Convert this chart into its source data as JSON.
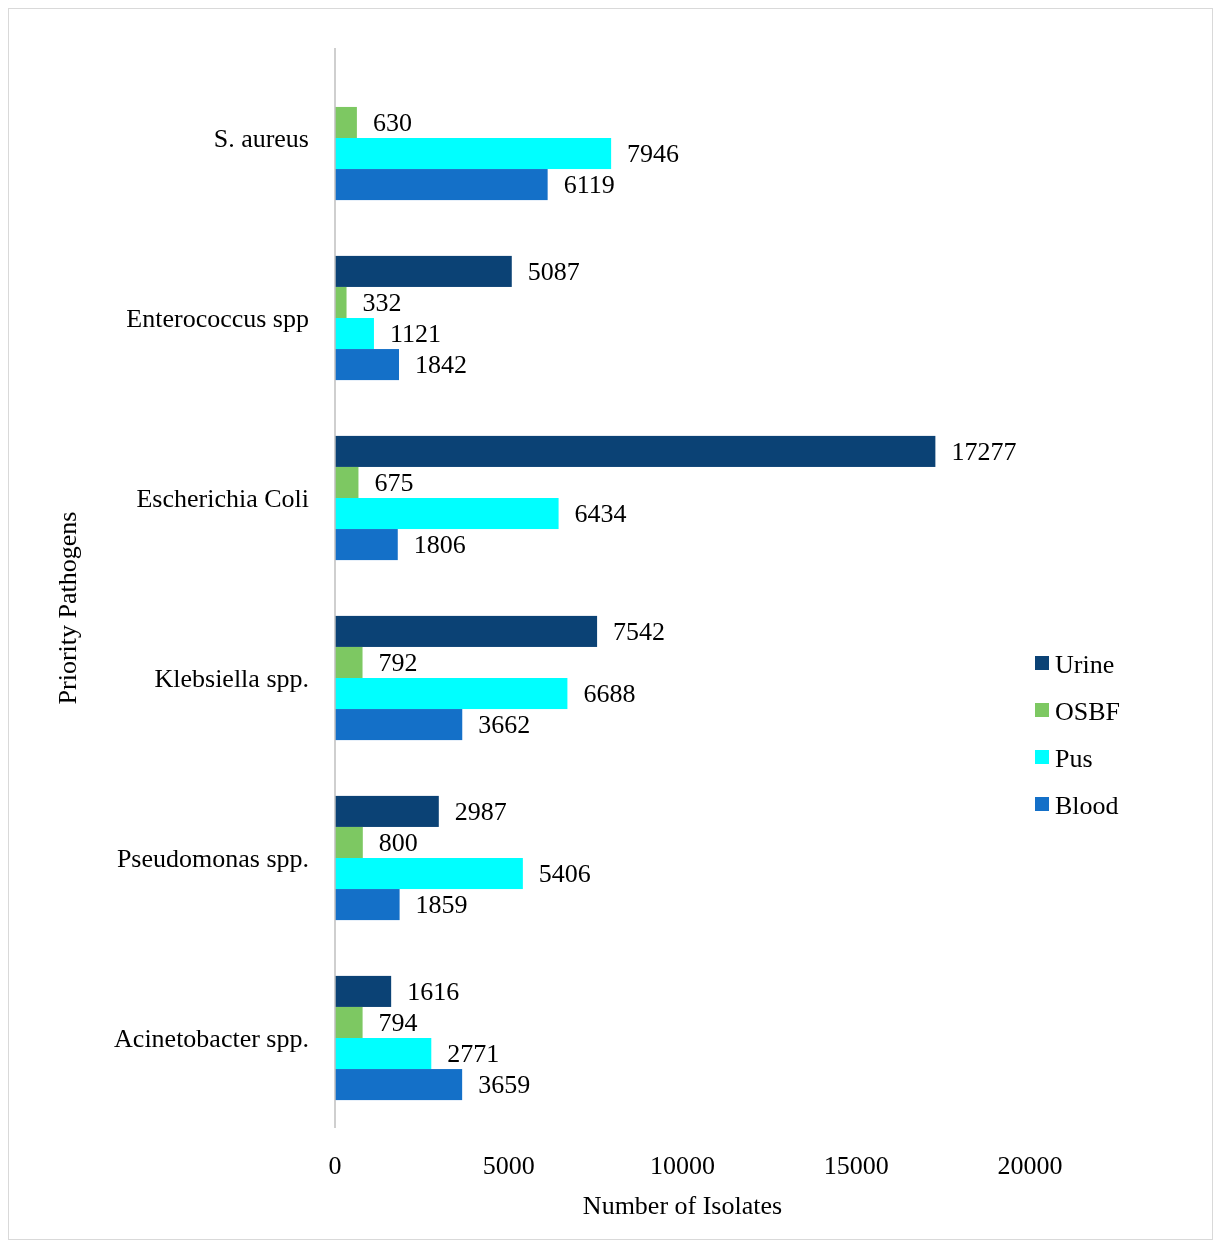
{
  "chart_data": {
    "type": "bar",
    "orientation": "horizontal",
    "xlabel": "Number of Isolates",
    "ylabel": "Priority Pathogens",
    "categories": [
      "S. aureus",
      "Enterococcus spp",
      "Escherichia Coli",
      "Klebsiella spp.",
      "Pseudomonas spp.",
      "Acinetobacter spp."
    ],
    "series": [
      {
        "name": "Urine",
        "color": "#0b4275",
        "values": [
          null,
          5087,
          17277,
          7542,
          2987,
          1616
        ]
      },
      {
        "name": "OSBF",
        "color": "#7dc862",
        "values": [
          630,
          332,
          675,
          792,
          800,
          794
        ]
      },
      {
        "name": "Pus",
        "color": "#00ffff",
        "values": [
          7946,
          1121,
          6434,
          6688,
          5406,
          2771
        ]
      },
      {
        "name": "Blood",
        "color": "#1470c8",
        "values": [
          6119,
          1842,
          1806,
          3662,
          1859,
          3659
        ]
      }
    ],
    "xlim": [
      0,
      20000
    ],
    "xticks": [
      0,
      5000,
      10000,
      15000,
      20000
    ],
    "data_labels": true,
    "legend": "right",
    "grid": false
  }
}
